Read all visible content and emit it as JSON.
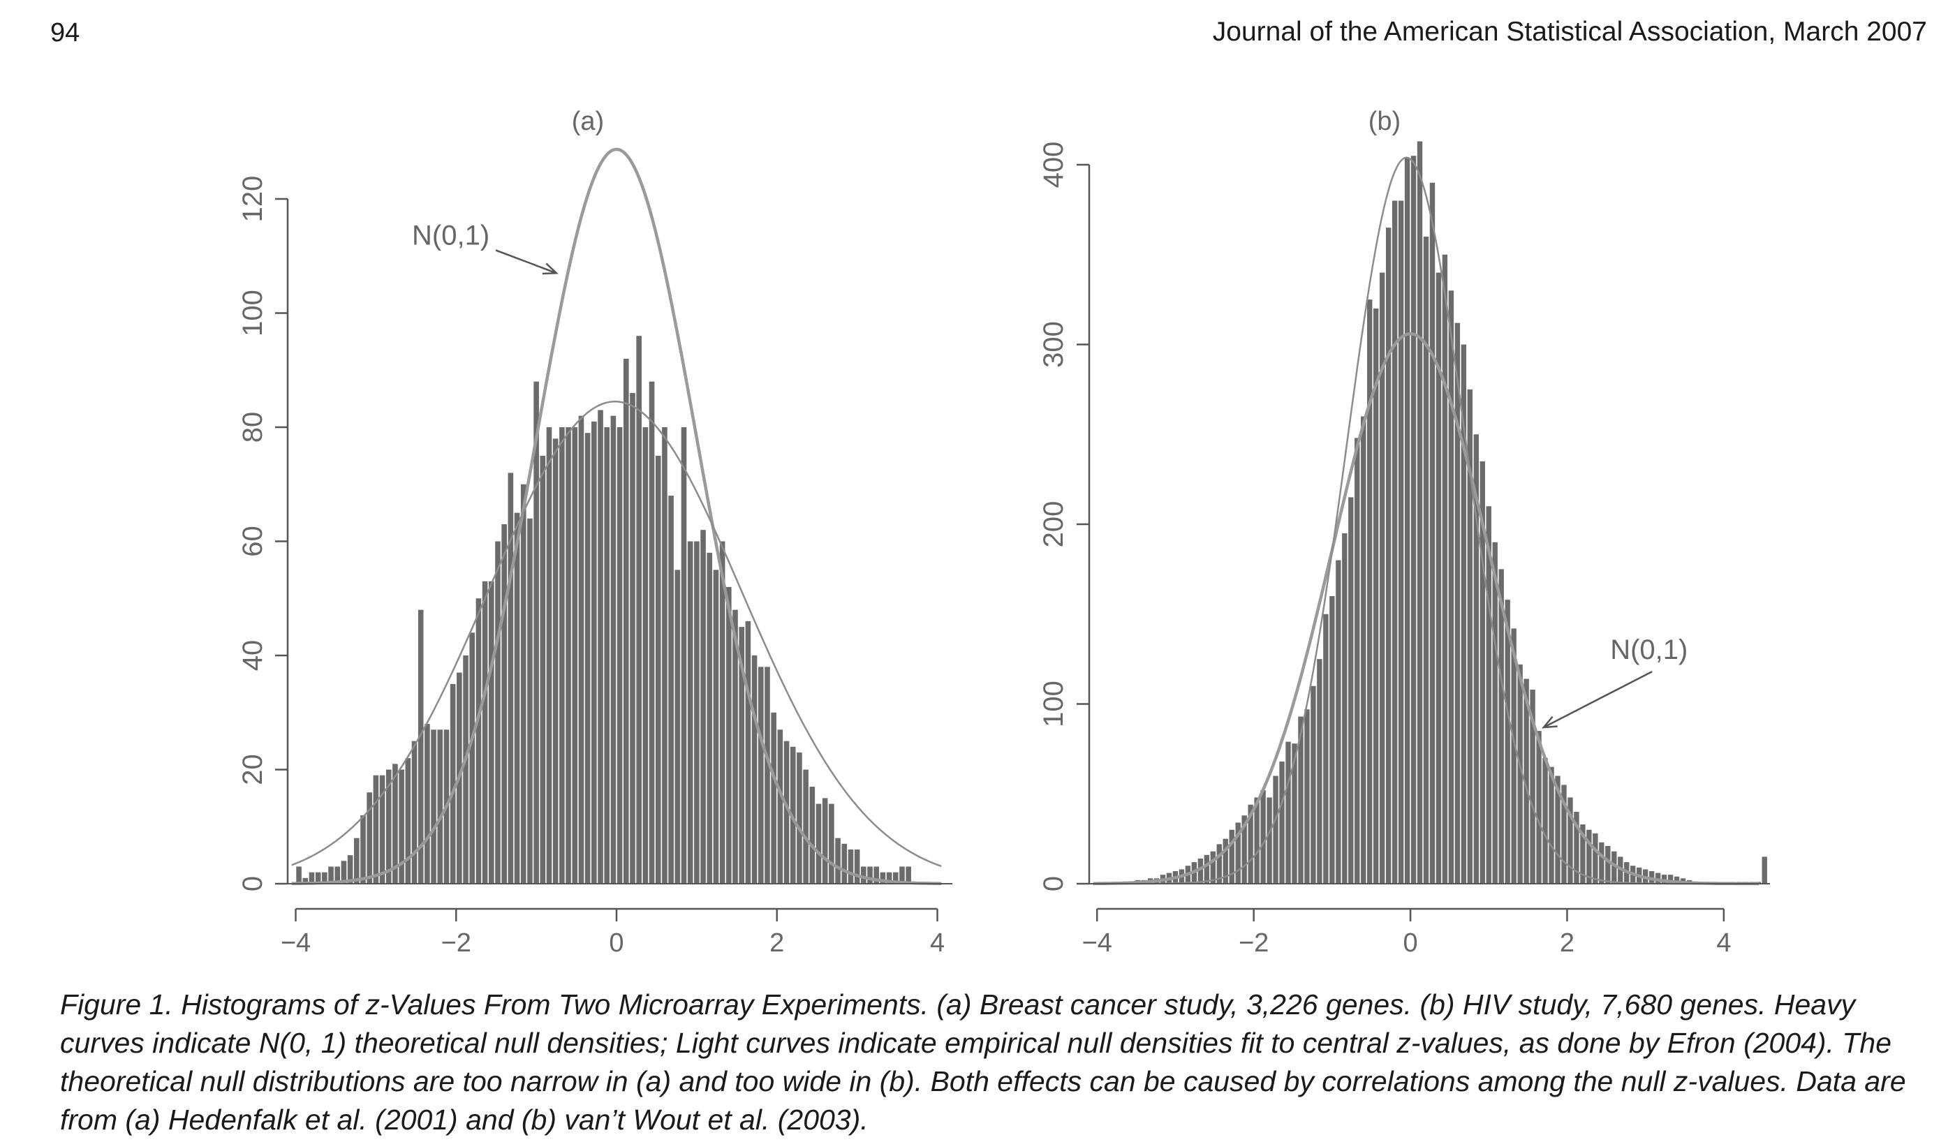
{
  "page": {
    "number": "94",
    "header": "Journal of the American Statistical Association, March 2007"
  },
  "caption": {
    "lines": [
      "Figure 1.  Histograms of z-Values From Two Microarray Experiments. (a) Breast cancer study, 3,226 genes. (b) HIV study, 7,680 genes. Heavy",
      "curves indicate N(0, 1) theoretical null densities; Light curves indicate empirical null densities fit to central z-values, as done by Efron (2004). The",
      "theoretical null distributions are too narrow in (a) and too wide in (b). Both effects can be caused by correlations among the null z-values. Data are",
      "from (a) Hedenfalk et al. (2001) and (b) van’t Wout et al. (2003)."
    ]
  },
  "colors": {
    "bar": "#6b6b6b",
    "heavy_curve": "#9a9a9a",
    "light_curve": "#8c8c8c",
    "axis": "#555555"
  },
  "chart_data": [
    {
      "type": "bar",
      "title": "(a)",
      "xlim": [
        -4.1,
        4.1
      ],
      "ylim": [
        0,
        120
      ],
      "xticks": [
        -4,
        -2,
        0,
        2,
        4
      ],
      "xtick_labels": [
        "−4",
        "−2",
        "0",
        "2",
        "4"
      ],
      "yticks": [
        0,
        20,
        40,
        60,
        80,
        100,
        120
      ],
      "ytick_labels": [
        "0",
        "20",
        "40",
        "60",
        "80",
        "100",
        "120"
      ],
      "bin_start": -4.0,
      "bin_width": 0.08,
      "values": [
        3,
        1,
        2,
        2,
        2,
        3,
        3,
        4,
        5,
        8,
        12,
        16,
        19,
        19,
        20,
        21,
        20,
        22,
        25,
        48,
        28,
        27,
        27,
        27,
        35,
        37,
        40,
        44,
        50,
        53,
        53,
        60,
        63,
        72,
        65,
        70,
        64,
        88,
        75,
        80,
        78,
        80,
        80,
        80,
        82,
        79,
        81,
        83,
        80,
        82,
        80,
        92,
        86,
        96,
        80,
        88,
        75,
        80,
        68,
        55,
        80,
        60,
        60,
        62,
        58,
        55,
        60,
        52,
        48,
        45,
        46,
        40,
        38,
        38,
        30,
        27,
        25,
        24,
        23,
        20,
        17,
        14,
        15,
        14,
        8,
        7,
        6,
        6,
        3,
        3,
        3,
        2,
        2,
        2,
        3,
        3
      ],
      "curves": [
        {
          "name": "N(0,1)",
          "style": "heavy",
          "mean": 0,
          "sd": 1,
          "peak": 128.7
        },
        {
          "name": "",
          "style": "light",
          "mean": -0.02,
          "sd": 1.58,
          "peak": 84.5
        }
      ],
      "annotation": {
        "text": "N(0,1)",
        "label_at": [
          -2.55,
          112
        ],
        "arrow_to": [
          -0.75,
          107
        ]
      }
    },
    {
      "type": "bar",
      "title": "(b)",
      "xlim": [
        -4.1,
        4.5
      ],
      "ylim": [
        0,
        400
      ],
      "xticks": [
        -4,
        -2,
        0,
        2,
        4
      ],
      "xtick_labels": [
        "−4",
        "−2",
        "0",
        "2",
        "4"
      ],
      "yticks": [
        0,
        100,
        200,
        300,
        400
      ],
      "ytick_labels": [
        "0",
        "100",
        "200",
        "300",
        "400"
      ],
      "bin_start": -4.0,
      "bin_width": 0.08,
      "values": [
        1,
        1,
        1,
        1,
        1,
        1,
        2,
        2,
        3,
        3,
        5,
        6,
        7,
        8,
        10,
        12,
        14,
        16,
        18,
        22,
        25,
        30,
        34,
        38,
        44,
        48,
        52,
        48,
        60,
        68,
        79,
        78,
        93,
        97,
        110,
        125,
        150,
        160,
        180,
        195,
        215,
        248,
        260,
        325,
        320,
        340,
        365,
        380,
        380,
        404,
        405,
        413,
        360,
        390,
        340,
        350,
        330,
        312,
        300,
        275,
        250,
        235,
        210,
        190,
        175,
        158,
        142,
        122,
        114,
        108,
        85,
        70,
        65,
        60,
        55,
        48,
        40,
        33,
        30,
        28,
        23,
        21,
        18,
        15,
        12,
        10,
        9,
        8,
        7,
        6,
        5,
        5,
        4,
        3,
        2,
        1,
        1,
        1,
        1,
        1,
        1,
        1,
        1,
        1,
        1,
        1,
        15
      ],
      "curves": [
        {
          "name": "N(0,1)",
          "style": "heavy",
          "mean": 0,
          "sd": 1,
          "peak": 306
        },
        {
          "name": "",
          "style": "light",
          "mean": -0.05,
          "sd": 0.76,
          "peak": 404
        }
      ],
      "annotation": {
        "text": "N(0,1)",
        "label_at": [
          2.55,
          125
        ],
        "arrow_to": [
          1.7,
          87
        ]
      }
    }
  ]
}
